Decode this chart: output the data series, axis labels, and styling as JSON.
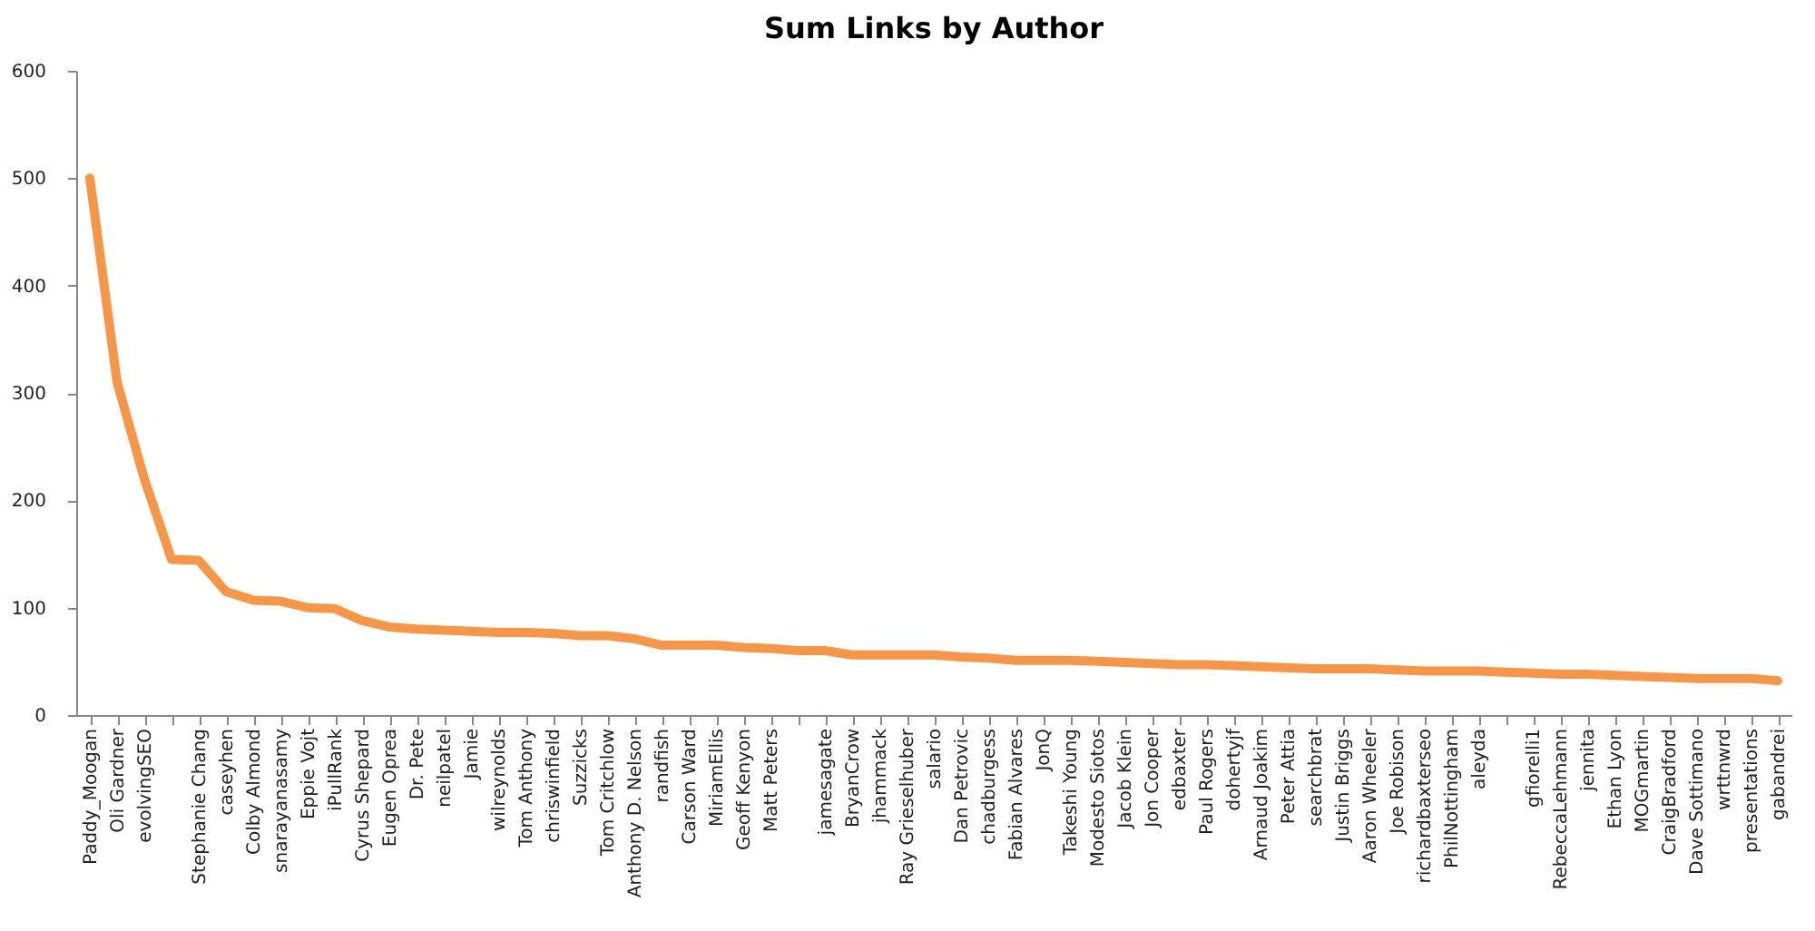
{
  "chart_data": {
    "type": "line",
    "title": "Sum Links by Author",
    "categories": [
      "Paddy_Moogan",
      "Oli Gardner",
      "evolvingSEO",
      null,
      "Stephanie Chang",
      "caseyhen",
      "Colby Almond",
      "snarayanasamy",
      "Eppie Vojt",
      "iPullRank",
      "Cyrus Shepard",
      "Eugen Oprea",
      "Dr. Pete",
      "neilpatel",
      "Jamie",
      "wilreynolds",
      "Tom Anthony",
      "chriswinfield",
      "Suzzicks",
      "Tom Critchlow",
      "Anthony D. Nelson",
      "randfish",
      "Carson Ward",
      "MiriamEllis",
      "Geoff Kenyon",
      "Matt Peters",
      null,
      "jamesagate",
      "BryanCrow",
      "jhammack",
      "Ray Grieselhuber",
      "salario",
      "Dan Petrovic",
      "chadburgess",
      "Fabian Alvares",
      "JonQ",
      "Takeshi Young",
      "Modesto Siotos",
      "Jacob Klein",
      "Jon Cooper",
      "edbaxter",
      "Paul Rogers",
      "dohertyjf",
      "Arnaud Joakim",
      "Peter Attia",
      "searchbrat",
      "Justin Briggs",
      "Aaron Wheeler",
      "Joe Robison",
      "richardbaxterseo",
      "PhilNottingham",
      "aleyda",
      null,
      "gfiorelli1",
      "RebeccaLehmann",
      "jennita",
      "Ethan Lyon",
      "MOGmartin",
      "CraigBradford",
      "Dave Sottimano",
      "wrttnwrd",
      "presentations",
      "gabandrei"
    ],
    "series": [
      {
        "color": "#f79646",
        "values": [
          500,
          310,
          220,
          145,
          144,
          115,
          107,
          106,
          100,
          99,
          88,
          82,
          80,
          79,
          78,
          77,
          77,
          76,
          74,
          74,
          71,
          65,
          65,
          65,
          63,
          62,
          60,
          60,
          56,
          56,
          56,
          56,
          54,
          53,
          51,
          51,
          51,
          50,
          49,
          48,
          47,
          47,
          46,
          45,
          44,
          43,
          43,
          43,
          42,
          41,
          41,
          41,
          40,
          39,
          38,
          38,
          37,
          36,
          35,
          34,
          34,
          34,
          32
        ]
      }
    ],
    "ylim": [
      0,
      600
    ],
    "yticks": [
      0,
      100,
      200,
      300,
      400,
      500,
      600
    ],
    "grid": false
  }
}
